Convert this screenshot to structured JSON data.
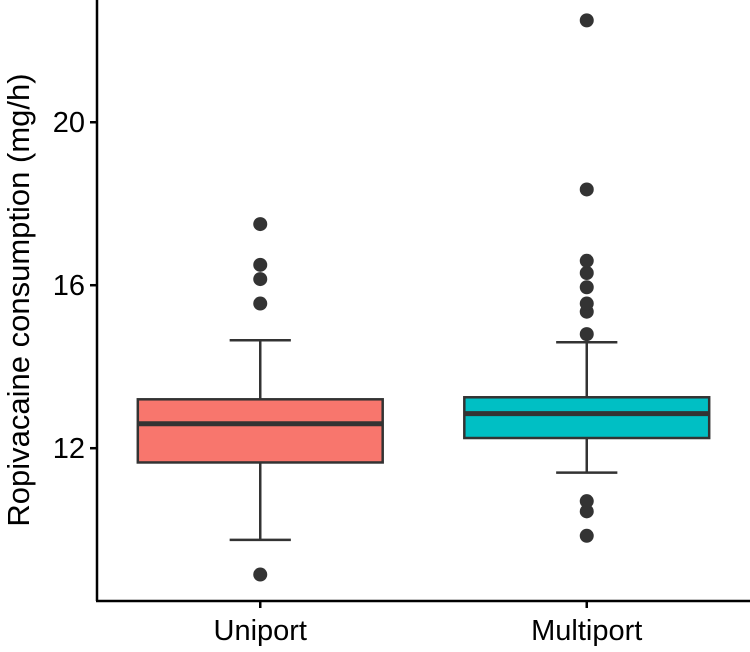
{
  "chart_data": {
    "type": "boxplot",
    "title": "",
    "xlabel": "",
    "ylabel": "Ropivacaine consumption (mg/h)",
    "ylim": [
      8.25,
      23.0
    ],
    "y_ticks": [
      12,
      16,
      20
    ],
    "y_tick_labels": [
      "12",
      "16",
      "20"
    ],
    "categories": [
      "Uniport",
      "Multiport"
    ],
    "grid": false,
    "legend": "none",
    "series": [
      {
        "category": "Uniport",
        "color": "#F8766D",
        "whisker_low": 9.75,
        "q1": 11.65,
        "median": 12.6,
        "q3": 13.2,
        "whisker_high": 14.65,
        "outliers": [
          8.9,
          15.55,
          16.15,
          16.5,
          17.5
        ]
      },
      {
        "category": "Multiport",
        "color": "#00BFC4",
        "whisker_low": 11.4,
        "q1": 12.25,
        "median": 12.85,
        "q3": 13.25,
        "whisker_high": 14.6,
        "outliers": [
          9.85,
          10.45,
          10.7,
          14.8,
          15.35,
          15.55,
          15.95,
          16.3,
          16.6,
          18.35,
          22.5
        ]
      }
    ]
  }
}
